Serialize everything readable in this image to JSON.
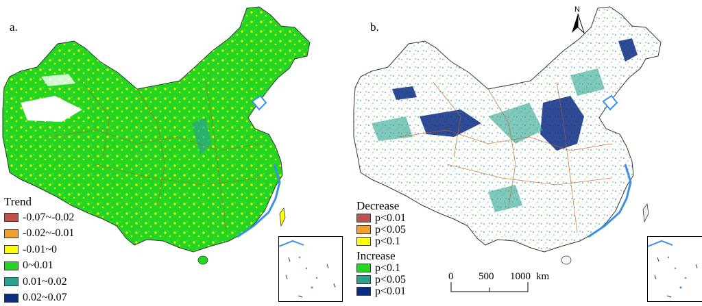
{
  "panels": {
    "a": {
      "label": "a.",
      "legend": {
        "title": "Trend",
        "items": [
          {
            "label": "-0.07~-0.02",
            "color": "#c0504d"
          },
          {
            "label": "-0.02~-0.01",
            "color": "#f0a030"
          },
          {
            "label": "-0.01~0",
            "color": "#ffff00"
          },
          {
            "label": "0~0.01",
            "color": "#22d622"
          },
          {
            "label": "0.01~0.02",
            "color": "#2aa38e"
          },
          {
            "label": "0.02~0.07",
            "color": "#0b2c83"
          }
        ]
      }
    },
    "b": {
      "label": "b.",
      "legend": {
        "decrease_title": "Decrease",
        "decrease_items": [
          {
            "label": "p<0.01",
            "color": "#c0504d"
          },
          {
            "label": "p<0.05",
            "color": "#f0a030"
          },
          {
            "label": "p<0.1",
            "color": "#ffff00"
          }
        ],
        "increase_title": "Increase",
        "increase_items": [
          {
            "label": "p<0.1",
            "color": "#22d622"
          },
          {
            "label": "p<0.05",
            "color": "#2aa38e"
          },
          {
            "label": "p<0.01",
            "color": "#0b2c83"
          }
        ]
      },
      "scalebar": {
        "ticks": [
          "0",
          "500",
          "1000"
        ],
        "unit": "km"
      },
      "north_label": "N"
    }
  },
  "colors": {
    "water": "#3a8fe8",
    "boundary": "#b5651d",
    "outline": "#333333"
  },
  "icons": [
    "north-arrow-icon"
  ]
}
